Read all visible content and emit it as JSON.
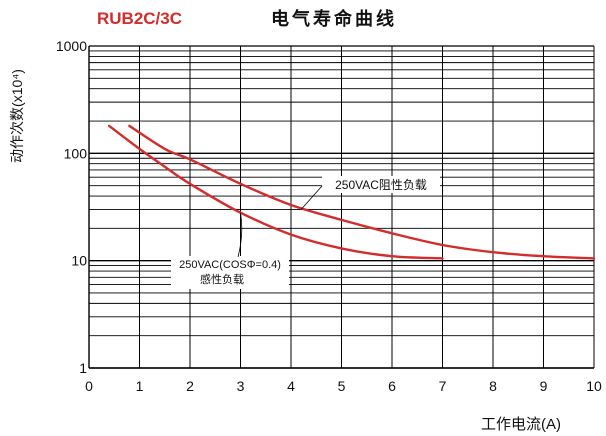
{
  "header": {
    "model": "RUB2C/3C",
    "title": "电气寿命曲线"
  },
  "chart_data": {
    "type": "line",
    "title": "电气寿命曲线",
    "xlabel": "工作电流(A)",
    "ylabel": "动作次数(x10⁴)",
    "xlim": [
      0,
      10
    ],
    "ylim": [
      1,
      1000
    ],
    "yscale": "log",
    "grid": true,
    "x_ticks": [
      "0",
      "1",
      "2",
      "3",
      "4",
      "5",
      "6",
      "7",
      "8",
      "9",
      "10"
    ],
    "y_ticks": [
      "1",
      "10",
      "100",
      "1000"
    ],
    "series": [
      {
        "name": "250VAC阻性负载",
        "x": [
          0.8,
          1.5,
          2,
          3,
          4,
          5,
          6,
          7,
          8,
          9,
          10
        ],
        "y": [
          180,
          110,
          88,
          52,
          33,
          24,
          18,
          14,
          12,
          11,
          10.5
        ]
      },
      {
        "name": "250VAC(COSΦ=0.4) 感性负载",
        "x": [
          0.4,
          1,
          1.5,
          2,
          3,
          4,
          5,
          6,
          7
        ],
        "y": [
          180,
          110,
          75,
          52,
          28,
          17.5,
          13,
          11,
          10.5
        ]
      }
    ],
    "annotations": [
      {
        "text": "250VAC阻性负载",
        "x": 4.2,
        "y": 30
      },
      {
        "text": "250VAC(COSΦ=0.4)",
        "text2": "感性负载",
        "x": 3.0,
        "y": 28
      }
    ],
    "line_color": "#d42b2b",
    "model_color": "#d42b2b"
  }
}
